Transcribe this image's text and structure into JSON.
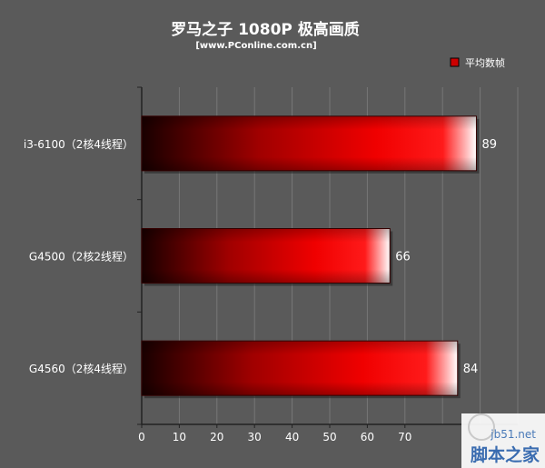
{
  "chart_data": {
    "type": "bar",
    "orientation": "horizontal",
    "title": "罗马之子 1080P 极高画质",
    "subtitle": "[www.PConline.com.cn]",
    "legend": {
      "label": "平均数帧",
      "placement": "top-right"
    },
    "categories": [
      "i3-6100（2核4线程）",
      "G4500（2核2线程）",
      "G4560（2核4线程）"
    ],
    "series": [
      {
        "name": "平均数帧",
        "values": [
          89,
          66,
          84
        ]
      }
    ],
    "xlim": [
      0,
      100
    ],
    "xticks": [
      0,
      10,
      20,
      30,
      40,
      50,
      60,
      70,
      80,
      90,
      100
    ],
    "visible_ticks": [
      0,
      10,
      20,
      30,
      40,
      50,
      60,
      70
    ],
    "grid": true
  },
  "watermark": {
    "domain": "jb51.net",
    "name": "脚本之家"
  },
  "colors": {
    "background": "#5a5a5a",
    "bar_dark": "#1e0000",
    "bar_mid": "#e00000",
    "bar_light": "#ffffff",
    "text": "#ffffff"
  }
}
